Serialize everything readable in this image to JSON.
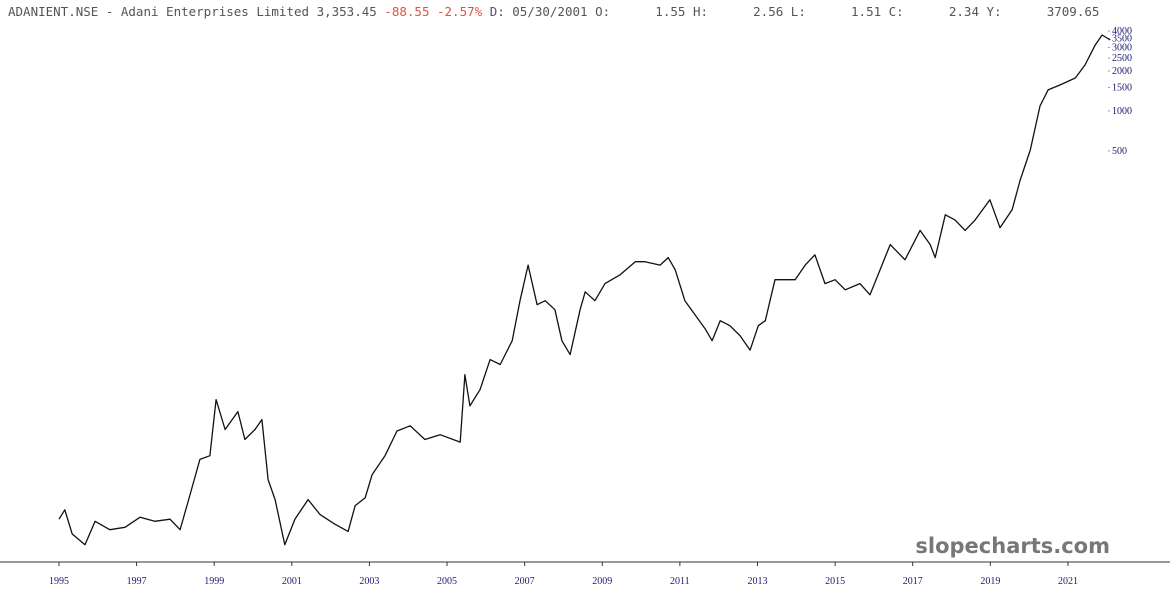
{
  "header": {
    "symbol": "ADANIENT.NSE - Adani Enterprises Limited",
    "price": "3,353.45",
    "change": "-88.55",
    "change_pct": "-2.57%",
    "fields": [
      {
        "label": "D:",
        "value": "05/30/2001"
      },
      {
        "label": "O:",
        "value": "1.55"
      },
      {
        "label": "H:",
        "value": "2.56"
      },
      {
        "label": "L:",
        "value": "1.51"
      },
      {
        "label": "C:",
        "value": "2.34"
      },
      {
        "label": "Y:",
        "value": "3709.65"
      }
    ]
  },
  "watermark": "slopecharts.com",
  "chart_data": {
    "type": "line",
    "yscale": "log",
    "color": "#111111",
    "x": [
      1995.0,
      1995.15,
      1995.34,
      1995.67,
      1995.93,
      1996.31,
      1996.7,
      1997.09,
      1997.47,
      1997.86,
      1998.12,
      1998.38,
      1998.63,
      1998.89,
      1999.05,
      1999.28,
      1999.61,
      1999.79,
      2000.05,
      2000.23,
      2000.39,
      2000.57,
      2000.82,
      2001.08,
      2001.42,
      2001.73,
      2002.11,
      2002.45,
      2002.63,
      2002.89,
      2003.07,
      2003.4,
      2003.71,
      2004.05,
      2004.43,
      2004.82,
      2005.34,
      2005.46,
      2005.59,
      2005.85,
      2006.11,
      2006.37,
      2006.68,
      2006.88,
      2007.09,
      2007.32,
      2007.53,
      2007.78,
      2007.96,
      2008.17,
      2008.43,
      2008.56,
      2008.81,
      2009.07,
      2009.46,
      2009.85,
      2010.1,
      2010.49,
      2010.7,
      2010.88,
      2011.13,
      2011.39,
      2011.65,
      2011.83,
      2012.04,
      2012.29,
      2012.55,
      2012.81,
      2013.02,
      2013.2,
      2013.45,
      2013.71,
      2013.97,
      2014.23,
      2014.48,
      2014.74,
      2015.0,
      2015.26,
      2015.64,
      2015.9,
      2016.16,
      2016.42,
      2016.8,
      2017.19,
      2017.45,
      2017.58,
      2017.84,
      2018.09,
      2018.35,
      2018.61,
      2018.99,
      2019.25,
      2019.56,
      2019.77,
      2020.03,
      2020.28,
      2020.49,
      2020.8,
      2021.19,
      2021.44,
      2021.7,
      2021.88,
      2022.09
    ],
    "values": [
      0.84,
      0.99,
      0.65,
      0.54,
      0.81,
      0.7,
      0.73,
      0.87,
      0.81,
      0.84,
      0.7,
      1.29,
      2.37,
      2.53,
      6.69,
      3.98,
      5.43,
      3.35,
      3.98,
      4.73,
      1.67,
      1.18,
      0.54,
      0.84,
      1.18,
      0.91,
      0.77,
      0.68,
      1.06,
      1.22,
      1.82,
      2.53,
      3.88,
      4.25,
      3.35,
      3.64,
      3.2,
      10.3,
      6.0,
      7.95,
      13.4,
      12.3,
      18.6,
      37.2,
      69,
      34.7,
      37.2,
      31.8,
      18.6,
      14.6,
      31.8,
      43.4,
      37.2,
      50.0,
      58.3,
      73.1,
      73.1,
      69,
      78.5,
      63.6,
      37.2,
      29.2,
      22.9,
      18.6,
      26.3,
      24.1,
      20.3,
      15.8,
      24.1,
      26.3,
      53.5,
      53.5,
      53.5,
      69,
      82.5,
      50,
      53.5,
      44.9,
      50,
      41.2,
      63.6,
      98.5,
      75.6,
      126,
      98.5,
      78.5,
      165,
      151,
      126,
      151,
      214,
      132,
      180,
      302,
      508,
      1090,
      1440,
      1570,
      1770,
      2220,
      3130,
      3730,
      3420
    ],
    "xlim": [
      1993.48,
      2023.63
    ],
    "xticks": [
      1995,
      1997,
      1999,
      2001,
      2003,
      2005,
      2007,
      2009,
      2011,
      2013,
      2015,
      2017,
      2019,
      2021
    ],
    "ylim": [
      0.4,
      4440
    ],
    "yticks": [
      500,
      1000,
      1500,
      2000,
      2500,
      3000,
      3500,
      4000
    ]
  }
}
